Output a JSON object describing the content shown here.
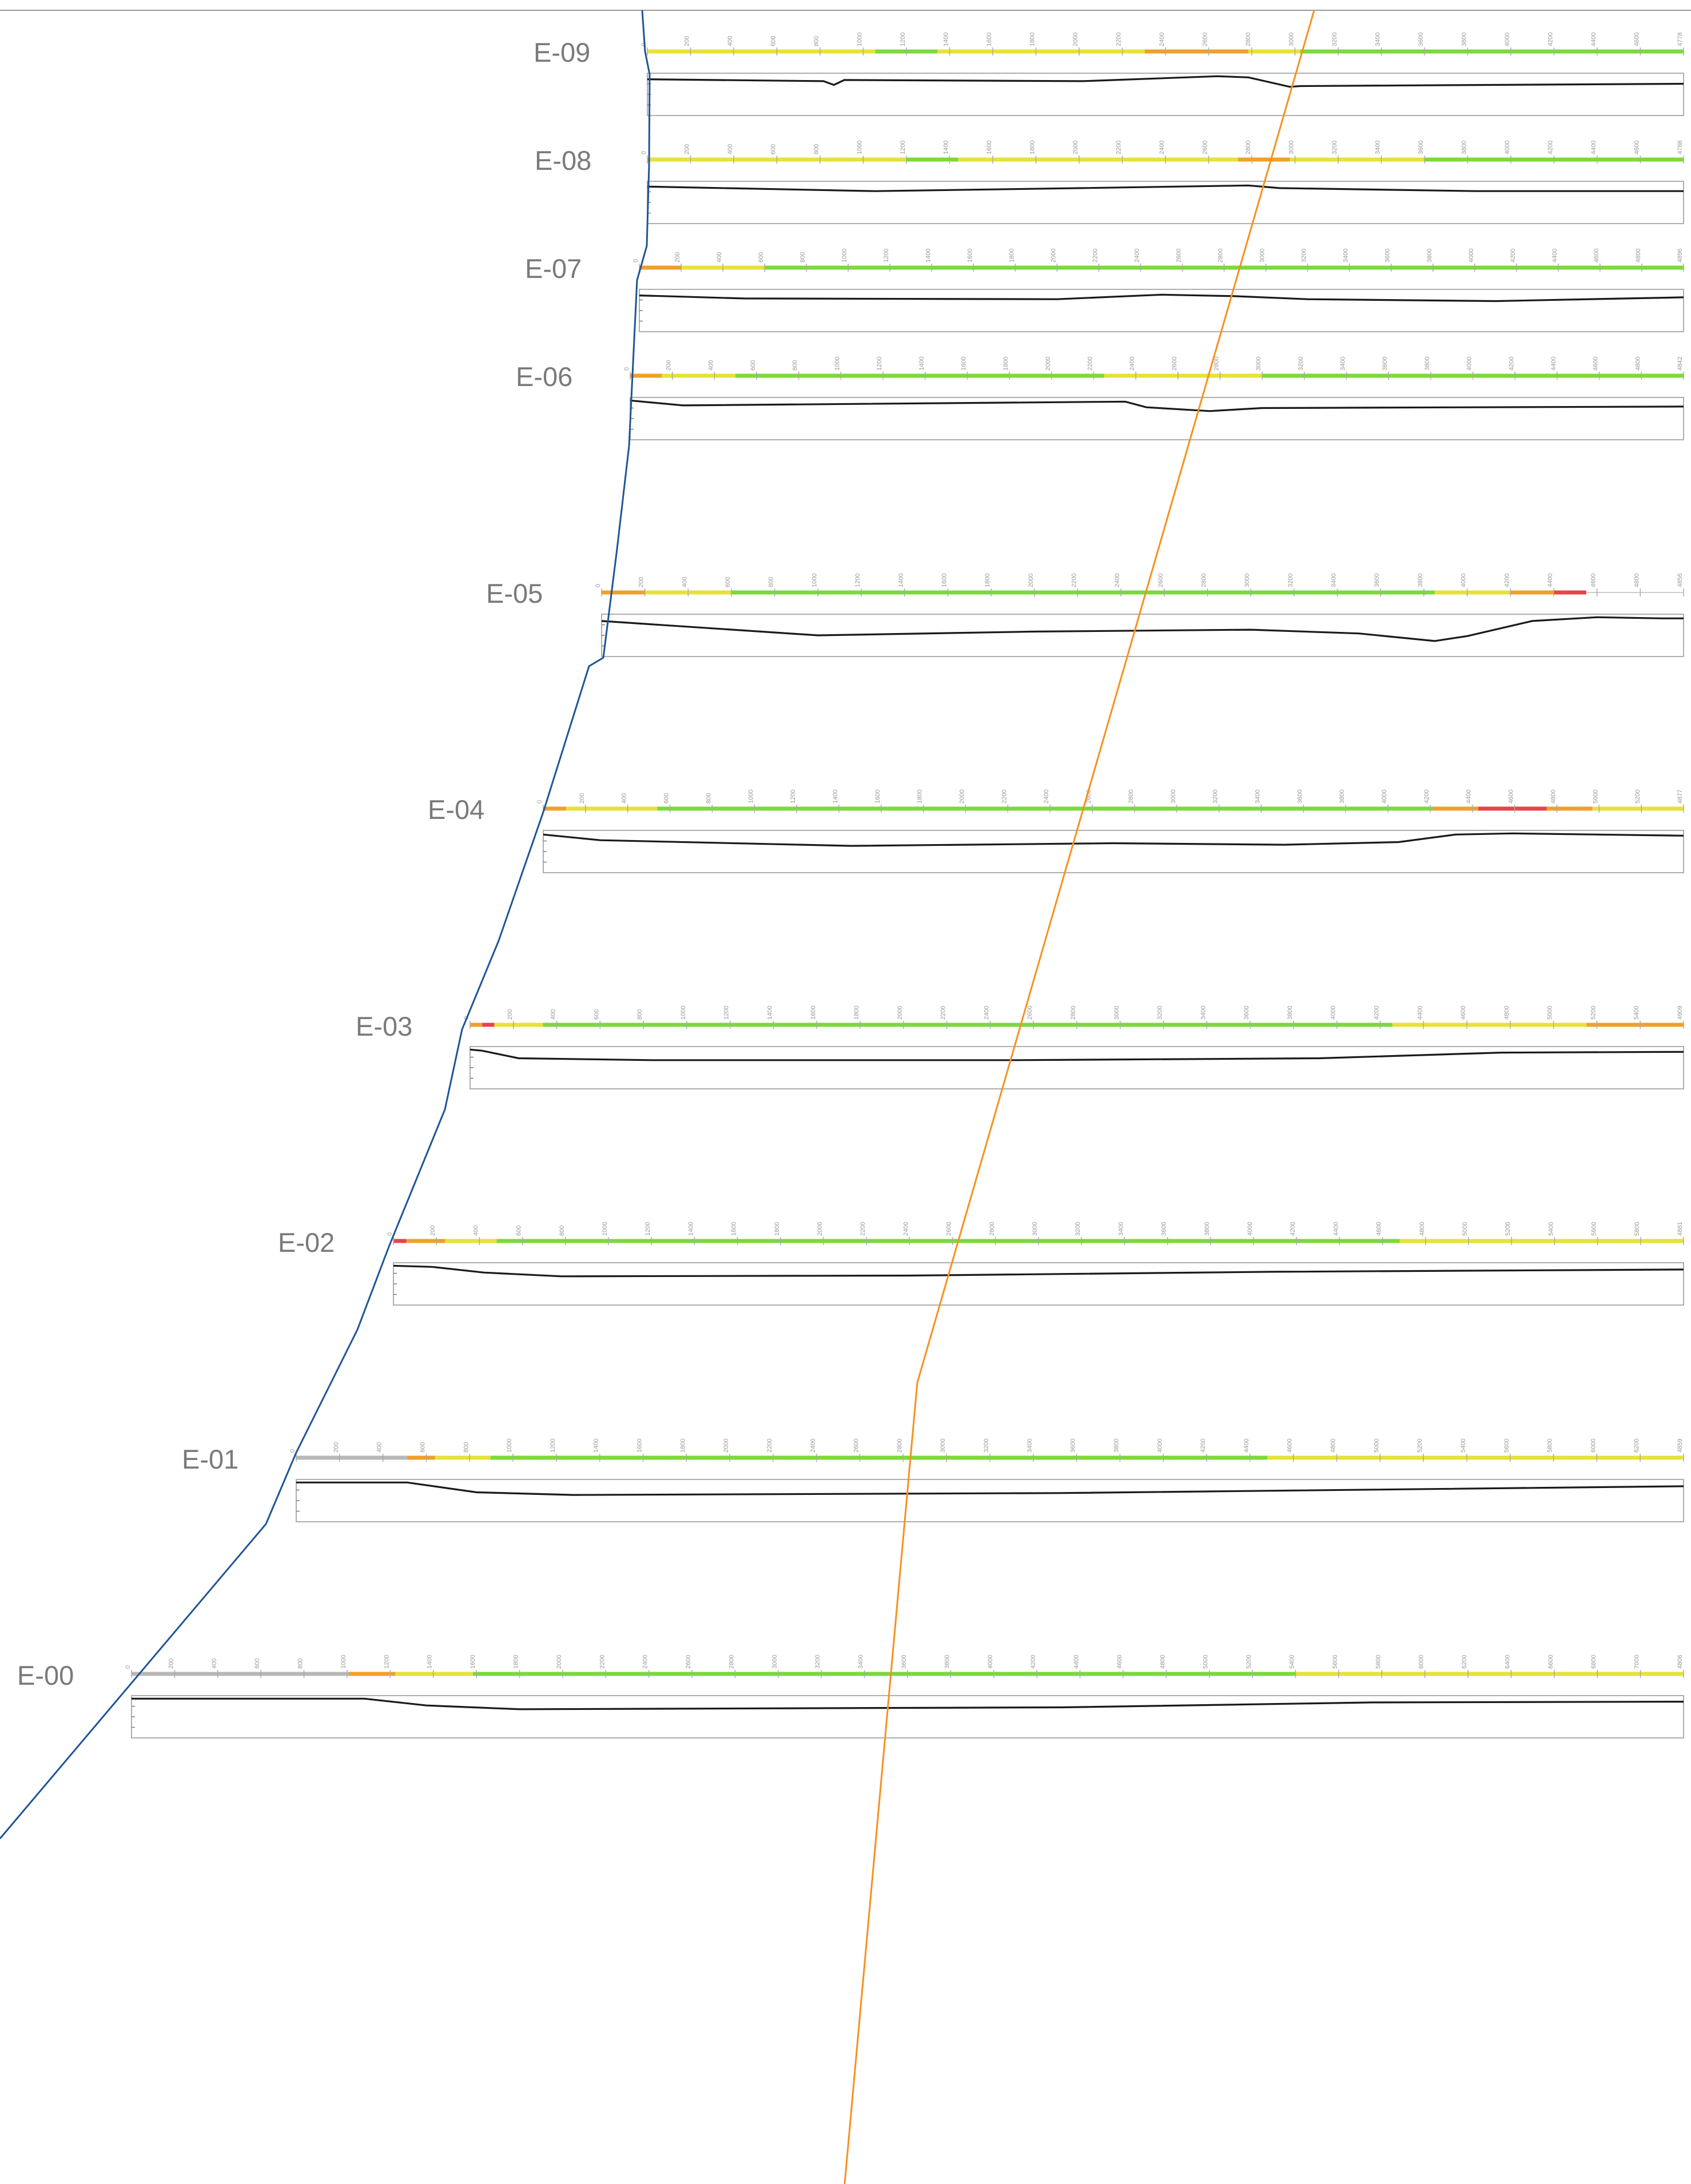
{
  "colors": {
    "background": "#ffffff",
    "top_rule": "#9a9a9a",
    "blue_line": "#1f5596",
    "orange_line": "#f7901e",
    "label": "#7a7a7a",
    "profile": "#1a1a1a",
    "bar_green": "#7cd93a",
    "bar_yellow": "#e6e23a",
    "bar_orange": "#f0a02a",
    "bar_red": "#e8434a",
    "bar_grey": "#b8b8b8"
  },
  "sections": [
    {
      "label": "E-09",
      "segments": [
        [
          "yellow",
          0,
          0.22
        ],
        [
          "green",
          0.22,
          0.28
        ],
        [
          "yellow",
          0.28,
          0.48
        ],
        [
          "orange",
          0.48,
          0.58
        ],
        [
          "yellow",
          0.58,
          0.63
        ],
        [
          "green",
          0.63,
          1.0
        ]
      ],
      "profile": [
        [
          0,
          0.1
        ],
        [
          0.17,
          0.15
        ],
        [
          0.18,
          0.25
        ],
        [
          0.19,
          0.12
        ],
        [
          0.42,
          0.15
        ],
        [
          0.55,
          0.02
        ],
        [
          0.58,
          0.05
        ],
        [
          0.62,
          0.3
        ],
        [
          0.63,
          0.28
        ],
        [
          1,
          0.22
        ]
      ],
      "ticks": 24,
      "end_label": "4778"
    },
    {
      "label": "E-08",
      "segments": [
        [
          "yellow",
          0,
          0.25
        ],
        [
          "green",
          0.25,
          0.3
        ],
        [
          "yellow",
          0.3,
          0.57
        ],
        [
          "orange",
          0.57,
          0.62
        ],
        [
          "yellow",
          0.62,
          0.75
        ],
        [
          "green",
          0.75,
          1.0
        ]
      ],
      "profile": [
        [
          0,
          0.08
        ],
        [
          0.22,
          0.2
        ],
        [
          0.42,
          0.12
        ],
        [
          0.58,
          0.05
        ],
        [
          0.61,
          0.12
        ],
        [
          0.8,
          0.2
        ],
        [
          1,
          0.2
        ]
      ],
      "ticks": 24,
      "end_label": "4788"
    },
    {
      "label": "E-07",
      "segments": [
        [
          "orange",
          0,
          0.04
        ],
        [
          "yellow",
          0.04,
          0.12
        ],
        [
          "green",
          0.12,
          1.0
        ]
      ],
      "profile": [
        [
          0,
          0.1
        ],
        [
          0.1,
          0.18
        ],
        [
          0.4,
          0.2
        ],
        [
          0.5,
          0.08
        ],
        [
          0.57,
          0.12
        ],
        [
          0.64,
          0.2
        ],
        [
          0.82,
          0.25
        ],
        [
          1,
          0.15
        ]
      ],
      "ticks": 25,
      "end_label": "4896"
    },
    {
      "label": "E-06",
      "segments": [
        [
          "orange",
          0,
          0.03
        ],
        [
          "yellow",
          0.03,
          0.1
        ],
        [
          "green",
          0.1,
          0.45
        ],
        [
          "yellow",
          0.45,
          0.6
        ],
        [
          "green",
          0.6,
          1.0
        ]
      ],
      "profile": [
        [
          0,
          0.02
        ],
        [
          0.05,
          0.15
        ],
        [
          0.47,
          0.05
        ],
        [
          0.49,
          0.2
        ],
        [
          0.55,
          0.3
        ],
        [
          0.6,
          0.22
        ],
        [
          1,
          0.18
        ]
      ],
      "ticks": 25,
      "end_label": "4842"
    },
    {
      "label": "E-05",
      "segments": [
        [
          "orange",
          0,
          0.04
        ],
        [
          "yellow",
          0.04,
          0.12
        ],
        [
          "green",
          0.12,
          0.77
        ],
        [
          "yellow",
          0.77,
          0.84
        ],
        [
          "orange",
          0.84,
          0.88
        ],
        [
          "red",
          0.88,
          0.89
        ],
        [
          "orange",
          0.89,
          0.89
        ],
        [
          "red",
          0.89,
          0.91
        ]
      ],
      "profile": [
        [
          0,
          0.12
        ],
        [
          0.2,
          0.5
        ],
        [
          0.4,
          0.4
        ],
        [
          0.6,
          0.35
        ],
        [
          0.7,
          0.45
        ],
        [
          0.77,
          0.65
        ],
        [
          0.8,
          0.52
        ],
        [
          0.86,
          0.12
        ],
        [
          0.92,
          0.02
        ],
        [
          0.98,
          0.05
        ],
        [
          1,
          0.05
        ]
      ],
      "ticks": 25,
      "end_label": "4856"
    },
    {
      "label": "E-04",
      "segments": [
        [
          "orange",
          0,
          0.02
        ],
        [
          "yellow",
          0.02,
          0.1
        ],
        [
          "green",
          0.1,
          0.78
        ],
        [
          "orange",
          0.78,
          0.82
        ],
        [
          "red",
          0.82,
          0.88
        ],
        [
          "orange",
          0.88,
          0.92
        ],
        [
          "yellow",
          0.92,
          1.0
        ]
      ],
      "profile": [
        [
          0,
          0.05
        ],
        [
          0.05,
          0.2
        ],
        [
          0.27,
          0.35
        ],
        [
          0.5,
          0.28
        ],
        [
          0.65,
          0.32
        ],
        [
          0.75,
          0.25
        ],
        [
          0.8,
          0.05
        ],
        [
          0.85,
          0.02
        ],
        [
          1,
          0.08
        ]
      ],
      "ticks": 27,
      "end_label": "4877"
    },
    {
      "label": "E-03",
      "segments": [
        [
          "orange",
          0,
          0.01
        ],
        [
          "red",
          0.01,
          0.02
        ],
        [
          "yellow",
          0.02,
          0.06
        ],
        [
          "green",
          0.06,
          0.76
        ],
        [
          "yellow",
          0.76,
          0.92
        ],
        [
          "orange",
          0.92,
          1.0
        ]
      ],
      "profile": [
        [
          0,
          0.02
        ],
        [
          0.01,
          0.05
        ],
        [
          0.04,
          0.25
        ],
        [
          0.15,
          0.3
        ],
        [
          0.45,
          0.3
        ],
        [
          0.7,
          0.25
        ],
        [
          0.85,
          0.1
        ],
        [
          1,
          0.08
        ]
      ],
      "ticks": 28,
      "end_label": "4909"
    },
    {
      "label": "E-02",
      "segments": [
        [
          "red",
          0,
          0.01
        ],
        [
          "orange",
          0.01,
          0.04
        ],
        [
          "yellow",
          0.04,
          0.08
        ],
        [
          "green",
          0.08,
          0.78
        ],
        [
          "yellow",
          0.78,
          1.0
        ]
      ],
      "profile": [
        [
          0,
          0.02
        ],
        [
          0.03,
          0.05
        ],
        [
          0.07,
          0.2
        ],
        [
          0.13,
          0.3
        ],
        [
          0.4,
          0.28
        ],
        [
          0.68,
          0.18
        ],
        [
          1,
          0.12
        ]
      ],
      "ticks": 30,
      "end_label": "4881"
    },
    {
      "label": "E-01",
      "segments": [
        [
          "grey",
          0,
          0.08
        ],
        [
          "orange",
          0.08,
          0.1
        ],
        [
          "yellow",
          0.1,
          0.14
        ],
        [
          "green",
          0.14,
          0.7
        ],
        [
          "yellow",
          0.7,
          1.0
        ]
      ],
      "profile": [
        [
          0,
          0.02
        ],
        [
          0.08,
          0.02
        ],
        [
          0.13,
          0.28
        ],
        [
          0.2,
          0.35
        ],
        [
          0.55,
          0.3
        ],
        [
          1,
          0.12
        ]
      ],
      "ticks": 32,
      "end_label": "4859"
    },
    {
      "label": "E-00",
      "segments": [
        [
          "grey",
          0,
          0.14
        ],
        [
          "orange",
          0.14,
          0.17
        ],
        [
          "yellow",
          0.17,
          0.22
        ],
        [
          "green",
          0.22,
          0.75
        ],
        [
          "yellow",
          0.75,
          1.0
        ]
      ],
      "profile": [
        [
          0,
          0.02
        ],
        [
          0.15,
          0.02
        ],
        [
          0.19,
          0.2
        ],
        [
          0.25,
          0.3
        ],
        [
          0.6,
          0.25
        ],
        [
          0.8,
          0.12
        ],
        [
          1,
          0.1
        ]
      ],
      "ticks": 36,
      "end_label": "4806"
    }
  ]
}
